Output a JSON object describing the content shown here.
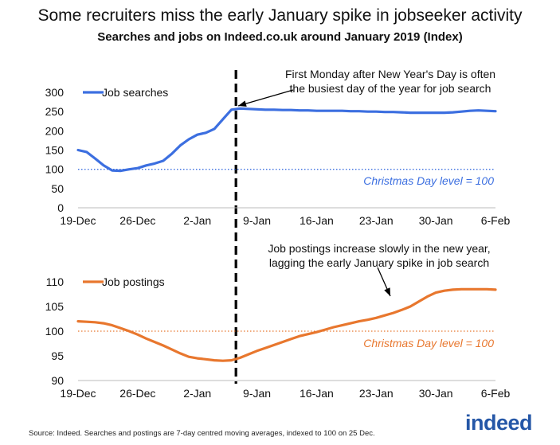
{
  "title": "Some recruiters miss the early January spike in jobseeker activity",
  "subtitle": "Searches and jobs on Indeed.co.uk around January 2019 (Index)",
  "source": "Source: Indeed. Searches and postings are 7-day centred moving averages, indexed to 100 on 25 Dec.",
  "logo_text": "indeed",
  "chart_data": [
    {
      "type": "line",
      "title": "",
      "xlabel": "",
      "ylabel": "",
      "x_ticks": [
        "19-Dec",
        "26-Dec",
        "2-Jan",
        "9-Jan",
        "16-Jan",
        "23-Jan",
        "30-Jan",
        "6-Feb"
      ],
      "y_ticks": [
        0,
        50,
        100,
        150,
        200,
        250,
        300
      ],
      "xlim": [
        "19-Dec",
        "6-Feb"
      ],
      "ylim": [
        0,
        300
      ],
      "x": [
        "19-Dec",
        "20-Dec",
        "21-Dec",
        "22-Dec",
        "23-Dec",
        "24-Dec",
        "25-Dec",
        "26-Dec",
        "27-Dec",
        "28-Dec",
        "29-Dec",
        "30-Dec",
        "31-Dec",
        "1-Jan",
        "2-Jan",
        "3-Jan",
        "4-Jan",
        "5-Jan",
        "6-Jan",
        "7-Jan",
        "8-Jan",
        "9-Jan",
        "10-Jan",
        "11-Jan",
        "12-Jan",
        "13-Jan",
        "14-Jan",
        "15-Jan",
        "16-Jan",
        "17-Jan",
        "18-Jan",
        "19-Jan",
        "20-Jan",
        "21-Jan",
        "22-Jan",
        "23-Jan",
        "24-Jan",
        "25-Jan",
        "26-Jan",
        "27-Jan",
        "28-Jan",
        "29-Jan",
        "30-Jan",
        "31-Jan",
        "1-Feb",
        "2-Feb",
        "3-Feb",
        "4-Feb",
        "5-Feb",
        "6-Feb"
      ],
      "series": [
        {
          "name": "Job searches",
          "color": "#3c6fe0",
          "values": [
            150,
            145,
            128,
            110,
            97,
            96,
            100,
            103,
            110,
            115,
            122,
            140,
            162,
            178,
            190,
            195,
            205,
            230,
            255,
            258,
            257,
            256,
            255,
            255,
            254,
            254,
            253,
            253,
            252,
            252,
            252,
            252,
            251,
            251,
            250,
            250,
            249,
            249,
            248,
            247,
            247,
            247,
            247,
            247,
            248,
            250,
            252,
            253,
            252,
            251
          ]
        }
      ],
      "reference_line": {
        "value": 100,
        "label": "Christmas Day level = 100",
        "color": "#3c6fe0"
      },
      "annotation": "First Monday after New Year's Day is often\nthe busiest day of the year for job search",
      "legend_position": "top-left"
    },
    {
      "type": "line",
      "title": "",
      "xlabel": "",
      "ylabel": "",
      "x_ticks": [
        "19-Dec",
        "26-Dec",
        "2-Jan",
        "9-Jan",
        "16-Jan",
        "23-Jan",
        "30-Jan",
        "6-Feb"
      ],
      "y_ticks": [
        90,
        95,
        100,
        105,
        110
      ],
      "xlim": [
        "19-Dec",
        "6-Feb"
      ],
      "ylim": [
        90,
        110
      ],
      "x": [
        "19-Dec",
        "20-Dec",
        "21-Dec",
        "22-Dec",
        "23-Dec",
        "24-Dec",
        "25-Dec",
        "26-Dec",
        "27-Dec",
        "28-Dec",
        "29-Dec",
        "30-Dec",
        "31-Dec",
        "1-Jan",
        "2-Jan",
        "3-Jan",
        "4-Jan",
        "5-Jan",
        "6-Jan",
        "7-Jan",
        "8-Jan",
        "9-Jan",
        "10-Jan",
        "11-Jan",
        "12-Jan",
        "13-Jan",
        "14-Jan",
        "15-Jan",
        "16-Jan",
        "17-Jan",
        "18-Jan",
        "19-Jan",
        "20-Jan",
        "21-Jan",
        "22-Jan",
        "23-Jan",
        "24-Jan",
        "25-Jan",
        "26-Jan",
        "27-Jan",
        "28-Jan",
        "29-Jan",
        "30-Jan",
        "31-Jan",
        "1-Feb",
        "2-Feb",
        "3-Feb",
        "4-Feb",
        "5-Feb",
        "6-Feb"
      ],
      "series": [
        {
          "name": "Job postings",
          "color": "#e8772e",
          "values": [
            102,
            101.9,
            101.8,
            101.6,
            101.2,
            100.6,
            100,
            99.3,
            98.5,
            97.8,
            97.1,
            96.3,
            95.5,
            94.8,
            94.5,
            94.3,
            94.1,
            94.0,
            94.1,
            94.6,
            95.3,
            96.0,
            96.6,
            97.2,
            97.8,
            98.4,
            99.0,
            99.4,
            99.8,
            100.3,
            100.8,
            101.2,
            101.6,
            102.0,
            102.3,
            102.7,
            103.2,
            103.7,
            104.3,
            105.0,
            106.0,
            107.0,
            107.8,
            108.2,
            108.4,
            108.5,
            108.5,
            108.5,
            108.5,
            108.4
          ]
        }
      ],
      "reference_line": {
        "value": 100,
        "label": "Christmas Day level = 100",
        "color": "#e8772e"
      },
      "annotation": "Job postings increase slowly in the new year,\nlagging the early January spike in job search",
      "legend_position": "top-left"
    }
  ]
}
